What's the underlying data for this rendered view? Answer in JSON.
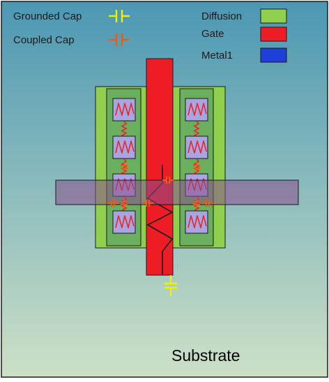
{
  "legend": {
    "grounded_cap": {
      "label": "Grounded Cap",
      "color": "#f0f000"
    },
    "coupled_cap": {
      "label": "Coupled Cap",
      "color": "#f05a14"
    },
    "diffusion": {
      "label": "Diffusion",
      "color": "#8fd14f"
    },
    "gate": {
      "label": "Gate",
      "color": "#ee1c24"
    },
    "metal1": {
      "label": "Metal1",
      "color": "#1e3fd8"
    }
  },
  "substrate": {
    "label": "Substrate",
    "gradient_top": "#4b97b3",
    "gradient_bottom": "#cde0c6"
  },
  "colors": {
    "inner_diffusion": "#6aaf5e",
    "contact_fill": "#a9a4e2",
    "resistor": "#e42828",
    "metal_band": "#8a4f8c",
    "outline": "#1a1a1a"
  },
  "icons": {
    "resistor": "resistor-zigzag-icon",
    "grounded_cap": "grounded-cap-icon",
    "coupled_cap": "coupled-cap-icon"
  }
}
